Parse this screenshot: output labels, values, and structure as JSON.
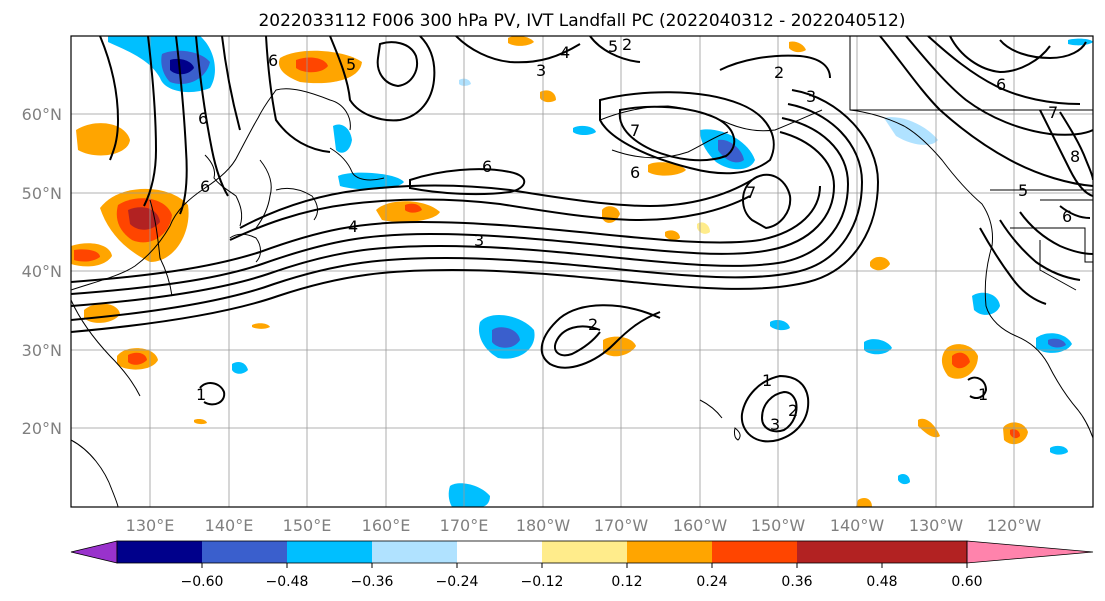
{
  "title": "2022033112 F006 300 hPa PV, IVT Landfall PC (2022040312 - 2022040512)",
  "map": {
    "projection": "PlateCarree",
    "lon_range": [
      120,
      250
    ],
    "lat_range": [
      10,
      70
    ],
    "lat_labels": [
      "60°N",
      "50°N",
      "40°N",
      "30°N",
      "20°N"
    ],
    "lon_labels": [
      "130°E",
      "140°E",
      "150°E",
      "160°E",
      "170°E",
      "180°W",
      "170°W",
      "160°W",
      "150°W",
      "140°W",
      "130°W",
      "120°W"
    ],
    "gridlines": true,
    "contour_color": "#000000",
    "contour_labels": [
      "6",
      "2",
      "3",
      "4",
      "5",
      "6",
      "6",
      "4",
      "3",
      "2",
      "5",
      "6",
      "7",
      "7",
      "2",
      "3",
      "1",
      "2",
      "3",
      "1",
      "6",
      "7",
      "5",
      "6",
      "8",
      "1",
      "6"
    ]
  },
  "colorbar": {
    "tick_labels": [
      "−0.60",
      "−0.48",
      "−0.36",
      "−0.24",
      "−0.12",
      "0.12",
      "0.24",
      "0.36",
      "0.48",
      "0.60"
    ],
    "colors": [
      "#9932cc",
      "#00008b",
      "#3a5fcd",
      "#00bfff",
      "#b0e2ff",
      "#ffffff",
      "#ffec8b",
      "#ffa500",
      "#ff4500",
      "#b22222",
      "#ff83ac"
    ],
    "extend": "both"
  }
}
